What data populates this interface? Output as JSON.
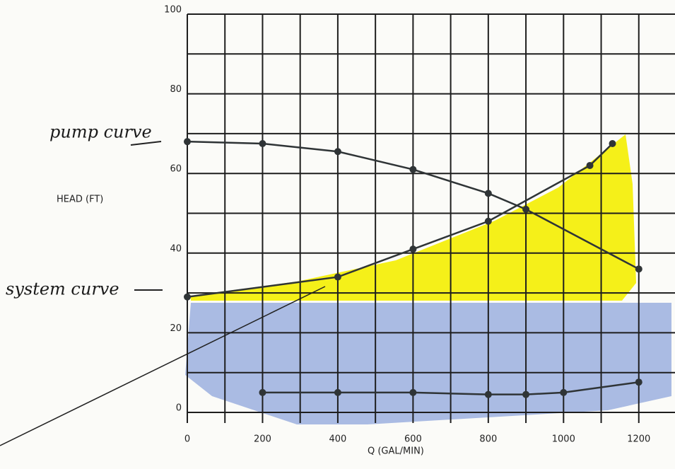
{
  "chart_data": {
    "type": "line",
    "y_label": "HEAD (FT)",
    "x_label": "Q (GAL/MIN)",
    "annotations": [
      "pump curve",
      "system curve"
    ],
    "xlim": [
      0,
      1300
    ],
    "ylim": [
      0,
      100
    ],
    "xticks": [
      0,
      200,
      400,
      600,
      800,
      1000,
      1200
    ],
    "yticks": [
      0,
      20,
      40,
      60,
      80,
      100
    ],
    "minor_xticks": [
      100,
      300,
      500,
      700,
      900,
      1100,
      1300
    ],
    "minor_yticks": [
      10,
      30,
      50,
      70,
      90
    ],
    "grid": true,
    "series": [
      {
        "color": "#2f3436",
        "x": [
          0,
          200,
          400,
          600,
          800,
          900,
          1200
        ],
        "values": [
          68,
          67.5,
          65.5,
          61,
          55,
          51,
          36
        ]
      },
      {
        "color": "#2f3436",
        "x": [
          0,
          400,
          600,
          800,
          1070,
          1130
        ],
        "values": [
          29,
          34,
          41,
          48,
          62,
          67.5
        ]
      },
      {
        "color": "#2f3436",
        "x": [
          200,
          400,
          600,
          800,
          900,
          1000,
          1200
        ],
        "values": [
          5,
          5,
          5,
          4.5,
          4.5,
          5,
          7.6
        ]
      }
    ]
  }
}
